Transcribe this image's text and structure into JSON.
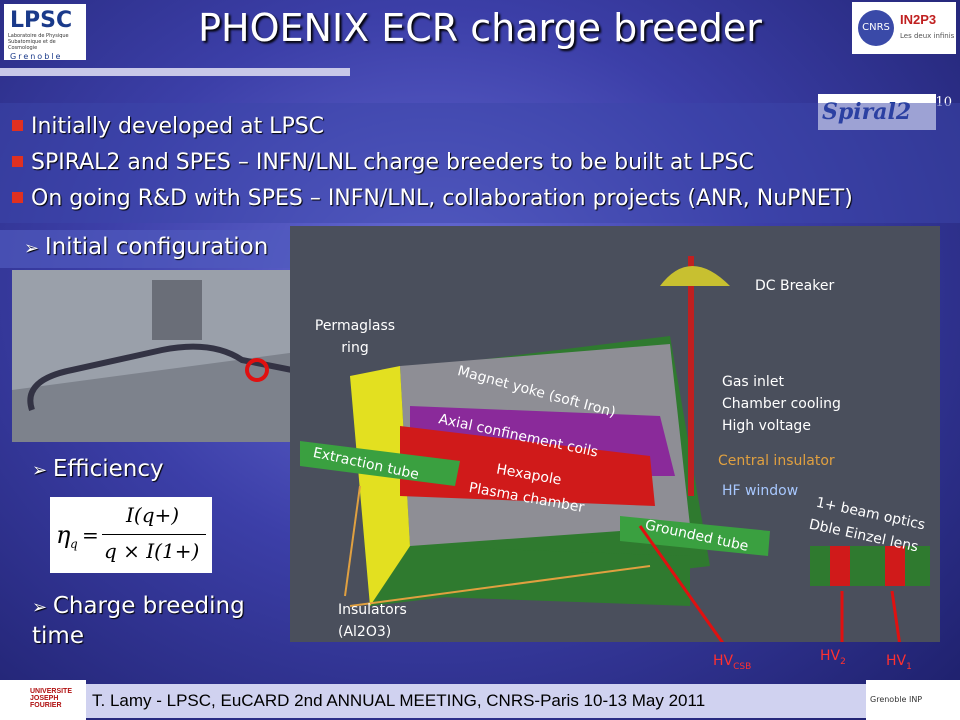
{
  "header": {
    "title": "PHOENIX ECR charge breeder",
    "slide_number": "10"
  },
  "logos": {
    "lpsc": "LPSC",
    "lpsc_subtitle": "Laboratoire de Physique Subatomique et de Cosmologie",
    "lpsc_city": "Grenoble",
    "cnrs": "CNRS",
    "in2p3": "IN2P3",
    "in2p3_tagline": "Les deux infinis",
    "spiral2": "Spiral2",
    "ujf": "UNIVERSITE JOSEPH FOURIER",
    "inp": "Grenoble INP"
  },
  "bullets": [
    "Initially developed at LPSC",
    "SPIRAL2 and SPES – INFN/LNL charge breeders to be built at LPSC",
    "On going R&D with SPES – INFN/LNL, collaboration projects (ANR, NuPNET)"
  ],
  "sections": [
    "Initial configuration",
    "Efficiency",
    "Charge breeding time"
  ],
  "formula": {
    "lhs": "η",
    "lhs_sub": "q",
    "numerator": "I(q+)",
    "denominator": "q × I(1+)"
  },
  "diagram": {
    "labels": [
      "DC Breaker",
      "Permaglass ring",
      "Gas inlet",
      "Chamber cooling",
      "High voltage",
      "Magnet yoke (soft Iron)",
      "Axial confinement coils",
      "Central insulator",
      "Extraction tube",
      "Hexapole",
      "Plasma chamber",
      "HF window",
      "1+ beam optics",
      "Dble Einzel lens",
      "Grounded tube",
      "Insulators",
      "(Al2O3)"
    ],
    "hv": [
      {
        "base": "HV",
        "sub": "CSB"
      },
      {
        "base": "HV",
        "sub": "2"
      },
      {
        "base": "HV",
        "sub": "1"
      }
    ]
  },
  "footer": "T. Lamy - LPSC, EuCARD 2nd ANNUAL MEETING, CNRS-Paris 10-13 May 2011"
}
